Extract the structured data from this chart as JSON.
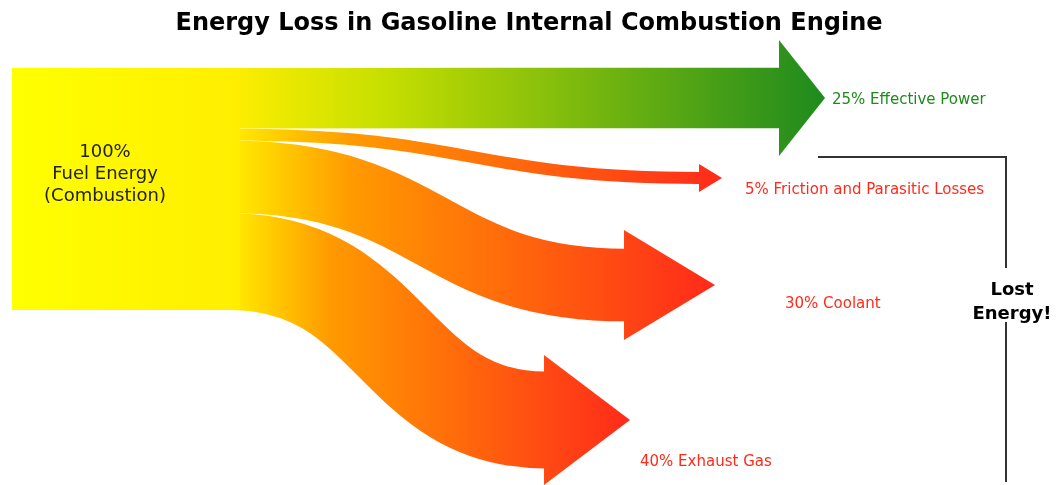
{
  "chart_data": {
    "type": "other",
    "title": "Energy Loss in Gasoline Internal Combustion Engine",
    "categories": [
      "Effective Power",
      "Friction and Parasitic Losses",
      "Coolant",
      "Exhaust Gas"
    ],
    "values": [
      25,
      5,
      30,
      40
    ],
    "value_labels": [
      "25%",
      "5%",
      "30%",
      "40%"
    ],
    "colors": [
      "#1e8a1e",
      "#ff2a1a",
      "#ff2a1a",
      "#ff2a1a"
    ],
    "annotations": [
      "100%\nFuel Energy\n(Combustion)",
      "Lost\nEnergy!"
    ]
  }
}
